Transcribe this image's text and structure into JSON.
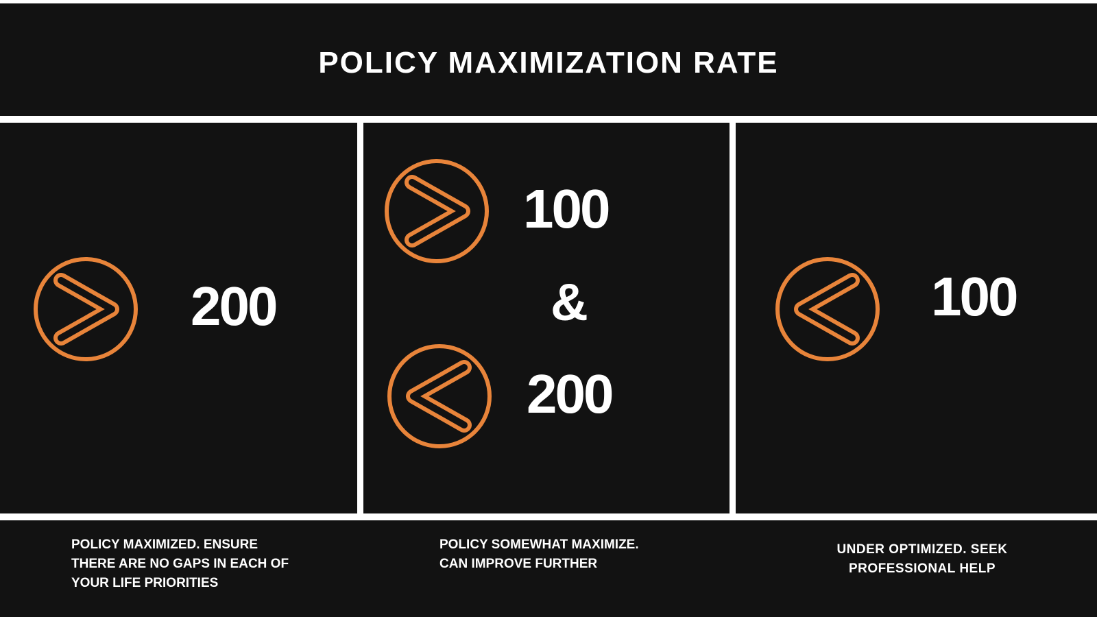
{
  "title": "POLICY MAXIMIZATION RATE",
  "accent_color": "#E8843A",
  "background_color": "#121212",
  "columns": [
    {
      "icon": "chevron-right-circle-icon",
      "value": "200"
    },
    {
      "icon_top": "chevron-right-circle-icon",
      "value_top": "100",
      "separator": "&",
      "icon_bottom": "chevron-left-circle-icon",
      "value_bottom": "200"
    },
    {
      "icon": "chevron-left-circle-icon",
      "value": "100"
    }
  ],
  "notes": [
    "POLICY MAXIMIZED. ENSURE THERE ARE NO GAPS IN EACH OF YOUR LIFE PRIORITIES",
    "POLICY SOMEWHAT MAXIMIZE. CAN IMPROVE FURTHER",
    "UNDER OPTIMIZED. SEEK PROFESSIONAL HELP"
  ]
}
